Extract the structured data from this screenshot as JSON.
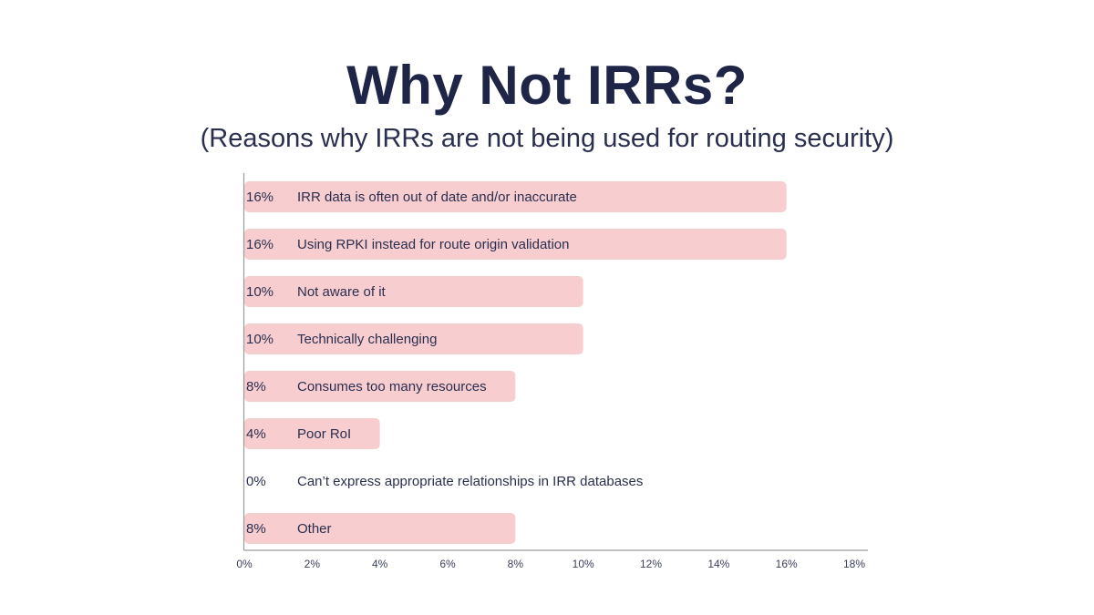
{
  "title": "Why Not IRRs?",
  "subtitle": "(Reasons why IRRs are not being used for routing security)",
  "colors": {
    "bar": "#f7cdd0",
    "text": "#1f2547",
    "axis": "#9a9a9a"
  },
  "chart_data": {
    "type": "bar",
    "orientation": "horizontal",
    "categories": [
      "IRR data is often out of date and/or inaccurate",
      "Using RPKI instead for route origin validation",
      "Not aware of it",
      "Technically challenging",
      "Consumes too many resources",
      "Poor RoI",
      "Can’t express appropriate relationships in IRR databases",
      "Other"
    ],
    "values": [
      16,
      16,
      10,
      10,
      8,
      4,
      0,
      8
    ],
    "value_labels": [
      "16%",
      "16%",
      "10%",
      "10%",
      "8%",
      "4%",
      "0%",
      "8%"
    ],
    "xlim": [
      0,
      18
    ],
    "xticks": [
      0,
      2,
      4,
      6,
      8,
      10,
      12,
      14,
      16,
      18
    ],
    "xtick_labels": [
      "0%",
      "2%",
      "4%",
      "6%",
      "8%",
      "10%",
      "12%",
      "14%",
      "16%",
      "18%"
    ],
    "grid": false,
    "legend": "none"
  }
}
